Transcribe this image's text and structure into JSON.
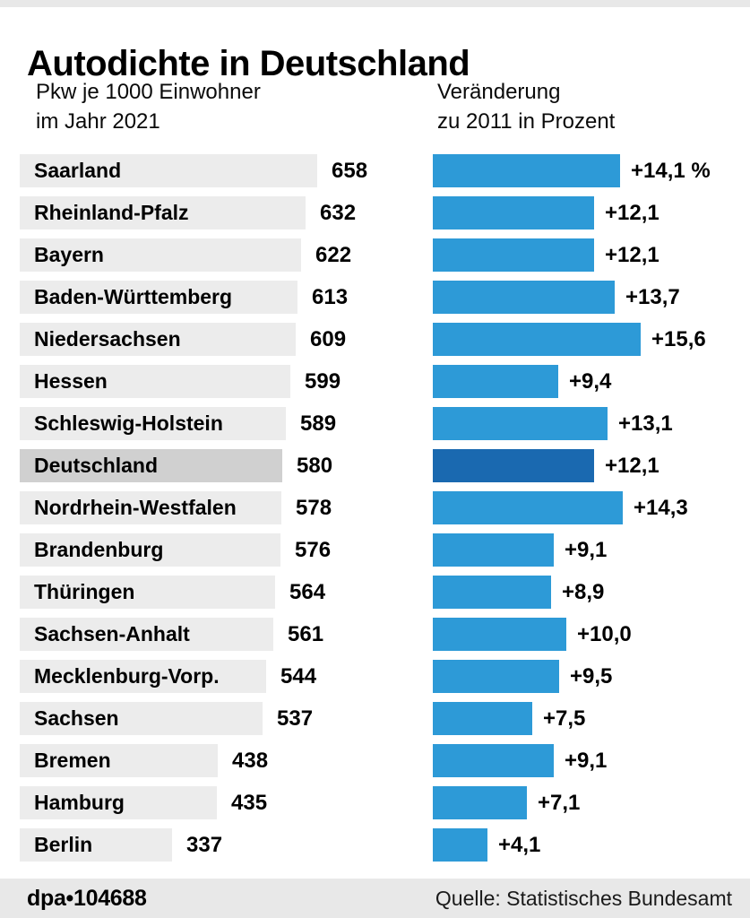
{
  "header": {
    "title": "Autodichte in Deutschland",
    "left_col_line1": "Pkw je 1000 Einwohner",
    "left_col_line2": "im Jahr 2021",
    "right_col_line1": "Veränderung",
    "right_col_line2": "zu 2011 in Prozent"
  },
  "footer": {
    "credit": "dpa•104688",
    "source": "Quelle: Statistisches Bundesamt"
  },
  "colors": {
    "bar_blue": "#2d9ad7",
    "bar_blue_highlight": "#1a69b0",
    "bar_gray": "#ececec",
    "bar_gray_highlight": "#d0d0d0",
    "strip_gray": "#e8e8e8"
  },
  "chart_data": {
    "type": "bar",
    "title": "Autodichte in Deutschland",
    "orientation": "horizontal",
    "categories": [
      "Saarland",
      "Rheinland-Pfalz",
      "Bayern",
      "Baden-Württemberg",
      "Niedersachsen",
      "Hessen",
      "Schleswig-Holstein",
      "Deutschland",
      "Nordrhein-Westfalen",
      "Brandenburg",
      "Thüringen",
      "Sachsen-Anhalt",
      "Mecklenburg-Vorp.",
      "Sachsen",
      "Bremen",
      "Hamburg",
      "Berlin"
    ],
    "series": [
      {
        "name": "Pkw je 1000 Einwohner im Jahr 2021",
        "values": [
          658,
          632,
          622,
          613,
          609,
          599,
          589,
          580,
          578,
          576,
          564,
          561,
          544,
          537,
          438,
          435,
          337
        ]
      },
      {
        "name": "Veränderung zu 2011 in Prozent",
        "values": [
          14.1,
          12.1,
          12.1,
          13.7,
          15.6,
          9.4,
          13.1,
          12.1,
          14.3,
          9.1,
          8.9,
          10.0,
          9.5,
          7.5,
          9.1,
          7.1,
          4.1
        ]
      }
    ],
    "highlight_category": "Deutschland",
    "grid": false,
    "legend_position": "none",
    "source": "Quelle: Statistisches Bundesamt"
  },
  "rows": [
    {
      "label": "Saarland",
      "value": "658",
      "value_num": 658,
      "pct": "+14,1 %",
      "pct_num": 14.1,
      "highlight": false
    },
    {
      "label": "Rheinland-Pfalz",
      "value": "632",
      "value_num": 632,
      "pct": "+12,1",
      "pct_num": 12.1,
      "highlight": false
    },
    {
      "label": "Bayern",
      "value": "622",
      "value_num": 622,
      "pct": "+12,1",
      "pct_num": 12.1,
      "highlight": false
    },
    {
      "label": "Baden-Württemberg",
      "value": "613",
      "value_num": 613,
      "pct": "+13,7",
      "pct_num": 13.7,
      "highlight": false
    },
    {
      "label": "Niedersachsen",
      "value": "609",
      "value_num": 609,
      "pct": "+15,6",
      "pct_num": 15.6,
      "highlight": false
    },
    {
      "label": "Hessen",
      "value": "599",
      "value_num": 599,
      "pct": "+9,4",
      "pct_num": 9.4,
      "highlight": false
    },
    {
      "label": "Schleswig-Holstein",
      "value": "589",
      "value_num": 589,
      "pct": "+13,1",
      "pct_num": 13.1,
      "highlight": false
    },
    {
      "label": "Deutschland",
      "value": "580",
      "value_num": 580,
      "pct": "+12,1",
      "pct_num": 12.1,
      "highlight": true
    },
    {
      "label": "Nordrhein-Westfalen",
      "value": "578",
      "value_num": 578,
      "pct": "+14,3",
      "pct_num": 14.3,
      "highlight": false
    },
    {
      "label": "Brandenburg",
      "value": "576",
      "value_num": 576,
      "pct": "+9,1",
      "pct_num": 9.1,
      "highlight": false
    },
    {
      "label": "Thüringen",
      "value": "564",
      "value_num": 564,
      "pct": "+8,9",
      "pct_num": 8.9,
      "highlight": false
    },
    {
      "label": "Sachsen-Anhalt",
      "value": "561",
      "value_num": 561,
      "pct": "+10,0",
      "pct_num": 10.0,
      "highlight": false
    },
    {
      "label": "Mecklenburg-Vorp.",
      "value": "544",
      "value_num": 544,
      "pct": "+9,5",
      "pct_num": 9.5,
      "highlight": false
    },
    {
      "label": "Sachsen",
      "value": "537",
      "value_num": 537,
      "pct": "+7,5",
      "pct_num": 7.5,
      "highlight": false
    },
    {
      "label": "Bremen",
      "value": "438",
      "value_num": 438,
      "pct": "+9,1",
      "pct_num": 9.1,
      "highlight": false
    },
    {
      "label": "Hamburg",
      "value": "435",
      "value_num": 435,
      "pct": "+7,1",
      "pct_num": 7.1,
      "highlight": false
    },
    {
      "label": "Berlin",
      "value": "337",
      "value_num": 337,
      "pct": "+4,1",
      "pct_num": 4.1,
      "highlight": false
    }
  ]
}
